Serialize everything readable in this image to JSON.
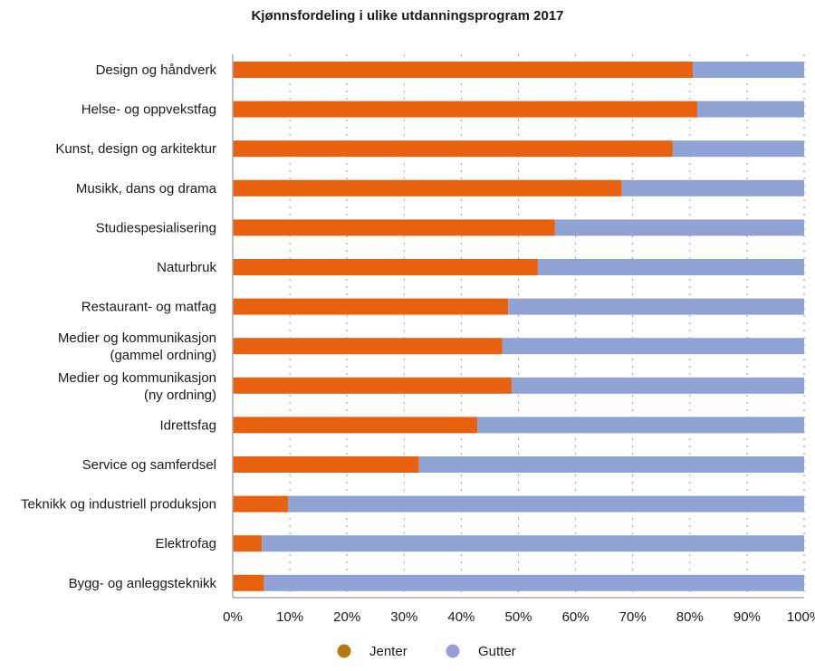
{
  "chart_data": {
    "type": "bar",
    "orientation": "horizontal",
    "stacked": "percent",
    "title": "Kjønnsfordeling i ulike utdanningsprogram 2017",
    "xlabel": "",
    "ylabel": "",
    "xlim": [
      0,
      100
    ],
    "x_ticks": [
      "0%",
      "10%",
      "20%",
      "30%",
      "40%",
      "50%",
      "60%",
      "70%",
      "80%",
      "90%",
      "100%"
    ],
    "grid": "vertical dotted",
    "legend_position": "bottom",
    "categories": [
      [
        "Design og håndverk"
      ],
      [
        "Helse- og oppvekstfag"
      ],
      [
        "Kunst, design og arkitektur"
      ],
      [
        "Musikk, dans og drama"
      ],
      [
        "Studiespesialisering"
      ],
      [
        "Naturbruk"
      ],
      [
        "Restaurant- og matfag"
      ],
      [
        "Medier og kommunikasjon",
        "(gammel ordning)"
      ],
      [
        "Medier og kommunikasjon",
        "(ny ordning)"
      ],
      [
        "Idrettsfag"
      ],
      [
        "Service og samferdsel"
      ],
      [
        "Teknikk og industriell produksjon"
      ],
      [
        "Elektrofag"
      ],
      [
        "Bygg- og anleggsteknikk"
      ]
    ],
    "series": [
      {
        "name": "Jenter",
        "color": "#e8610e",
        "legend_color": "#b57b10",
        "values": [
          80.5,
          81.3,
          77.0,
          68.1,
          56.4,
          53.4,
          48.2,
          47.2,
          48.8,
          42.8,
          32.6,
          9.7,
          5.1,
          5.5
        ]
      },
      {
        "name": "Gutter",
        "color": "#8fa3d4",
        "legend_color": "#9b9fd8",
        "values": [
          19.5,
          18.7,
          23.0,
          31.9,
          43.6,
          46.6,
          51.8,
          52.8,
          51.2,
          57.2,
          67.4,
          90.3,
          94.9,
          94.5
        ]
      }
    ]
  }
}
